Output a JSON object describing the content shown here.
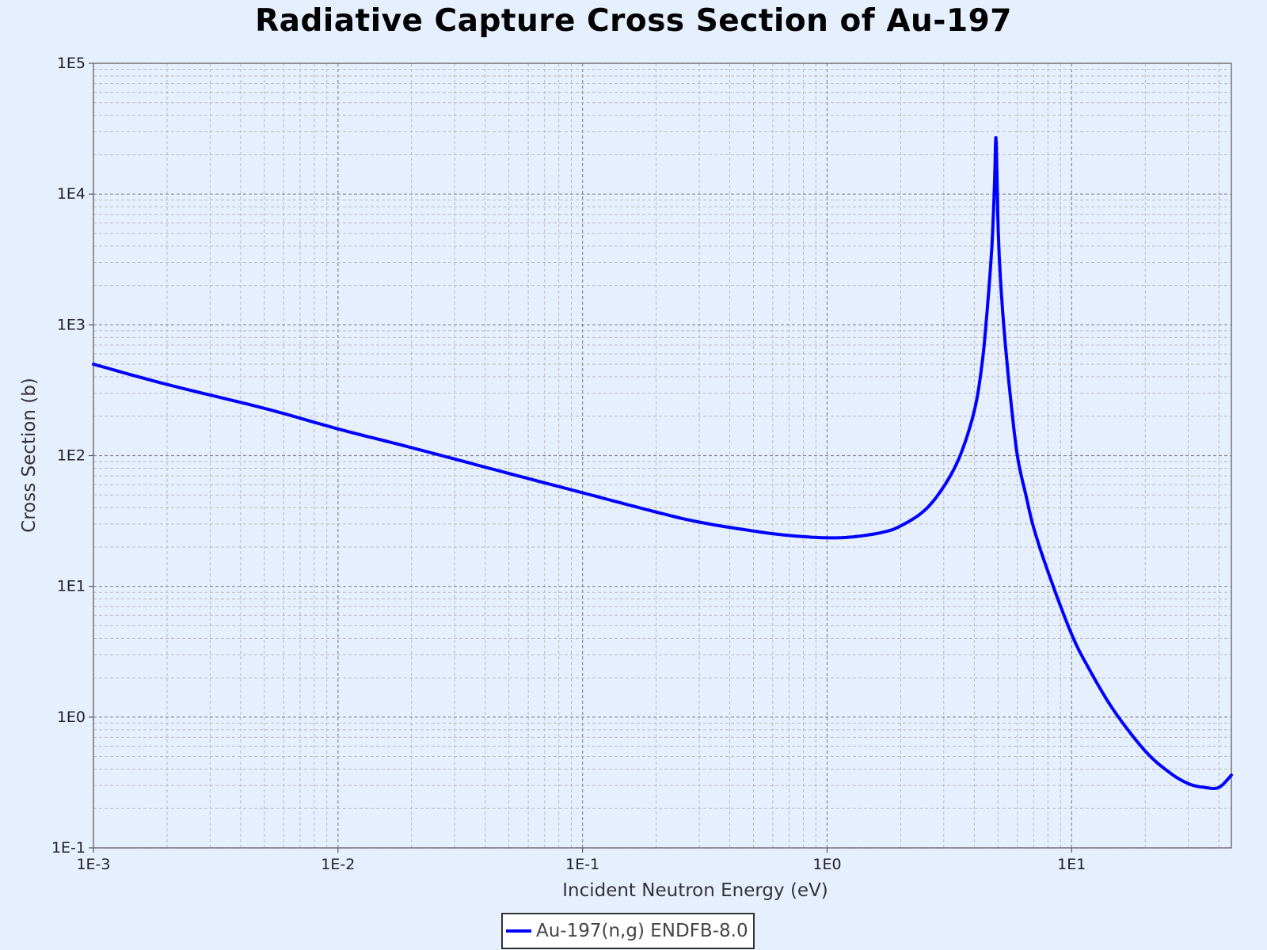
{
  "chart_data": {
    "type": "line",
    "title": "Radiative Capture Cross Section of Au-197",
    "xlabel": "Incident Neutron Energy (eV)",
    "ylabel": "Cross Section (b)",
    "xscale": "log",
    "yscale": "log",
    "xlim": [
      0.001,
      45
    ],
    "ylim": [
      0.1,
      100000
    ],
    "grid": true,
    "legend_position": "bottom-center",
    "x_tick_labels": [
      "1E-3",
      "1E-2",
      "1E-1",
      "1E0",
      "1E1"
    ],
    "y_tick_labels": [
      "1E-1",
      "1E0",
      "1E1",
      "1E2",
      "1E3",
      "1E4",
      "1E5"
    ],
    "series": [
      {
        "name": "Au-197(n,g) ENDFB-8.0",
        "color": "#0000ff",
        "x": [
          0.001,
          0.002,
          0.005,
          0.01,
          0.02,
          0.05,
          0.1,
          0.2,
          0.3,
          0.5,
          0.7,
          1.0,
          1.3,
          1.7,
          2.0,
          2.5,
          3.0,
          3.5,
          4.0,
          4.3,
          4.5,
          4.7,
          4.8,
          4.85,
          4.9,
          4.95,
          5.0,
          5.1,
          5.3,
          5.6,
          6.0,
          6.5,
          7.0,
          8.0,
          10,
          12,
          15,
          20,
          25,
          30,
          35,
          40,
          45
        ],
        "y": [
          500,
          350,
          230,
          160,
          115,
          73,
          52,
          37,
          31,
          26.5,
          24.5,
          23.5,
          24,
          26,
          29,
          38,
          58,
          100,
          220,
          500,
          1200,
          3500,
          8000,
          14000,
          27000,
          14000,
          6000,
          2500,
          900,
          300,
          100,
          50,
          28,
          13,
          4.3,
          2.2,
          1.1,
          0.55,
          0.38,
          0.31,
          0.29,
          0.29,
          0.36
        ]
      }
    ]
  }
}
